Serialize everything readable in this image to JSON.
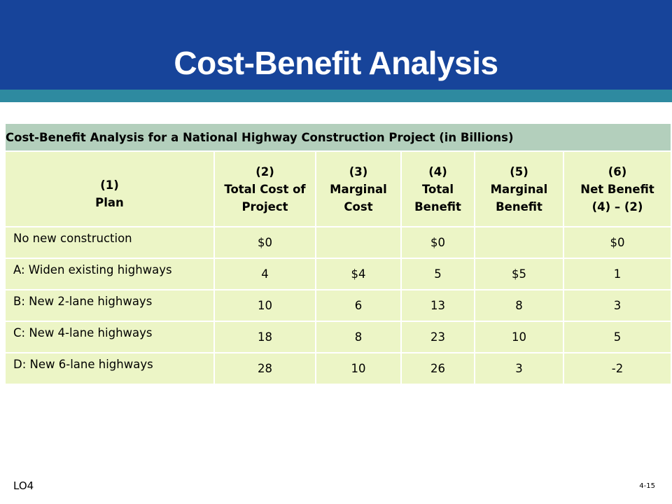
{
  "slide": {
    "title": "Cost-Benefit Analysis",
    "footer_left": "LO4",
    "footer_right": "4-15"
  },
  "table": {
    "caption": "Cost-Benefit Analysis for a National Highway Construction Project (in Billions)",
    "headers": [
      [
        "(1)",
        "Plan"
      ],
      [
        "(2)",
        "Total Cost of",
        "Project"
      ],
      [
        "(3)",
        "Marginal",
        "Cost"
      ],
      [
        "(4)",
        "Total",
        "Benefit"
      ],
      [
        "(5)",
        "Marginal",
        "Benefit"
      ],
      [
        "(6)",
        "Net Benefit",
        "(4) – (2)"
      ]
    ],
    "rows": [
      [
        "No new construction",
        "$0",
        "",
        "$0",
        "",
        "$0"
      ],
      [
        "A: Widen existing highways",
        "4",
        "$4",
        "5",
        "$5",
        "1"
      ],
      [
        "B: New 2-lane highways",
        "10",
        "6",
        "13",
        "8",
        "3"
      ],
      [
        "C: New 4-lane highways",
        "18",
        "8",
        "23",
        "10",
        "5"
      ],
      [
        "D: New 6-lane highways",
        "28",
        "10",
        "26",
        "3",
        "-2"
      ]
    ]
  }
}
